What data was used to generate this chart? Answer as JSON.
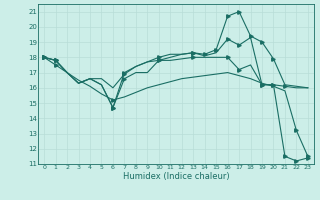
{
  "xlabel": "Humidex (Indice chaleur)",
  "bg_color": "#cceee8",
  "grid_color": "#b8ddd8",
  "line_color": "#1a6e64",
  "xlim": [
    -0.5,
    23.5
  ],
  "ylim": [
    11,
    21.5
  ],
  "yticks": [
    11,
    12,
    13,
    14,
    15,
    16,
    17,
    18,
    19,
    20,
    21
  ],
  "xticks": [
    0,
    1,
    2,
    3,
    4,
    5,
    6,
    7,
    8,
    9,
    10,
    11,
    12,
    13,
    14,
    15,
    16,
    17,
    18,
    19,
    20,
    21,
    22,
    23
  ],
  "line1_x": [
    0,
    1,
    2,
    3,
    4,
    5,
    6,
    7,
    8,
    9,
    10,
    11,
    12,
    13,
    14,
    15,
    16,
    17,
    18,
    19,
    20,
    21,
    22,
    23
  ],
  "line1_y": [
    18.0,
    17.8,
    17.0,
    16.3,
    16.6,
    16.6,
    16.0,
    16.9,
    17.4,
    17.7,
    17.8,
    17.8,
    17.9,
    18.0,
    18.0,
    18.0,
    18.0,
    17.2,
    17.5,
    16.2,
    16.2,
    16.1,
    16.0,
    16.0
  ],
  "line2_x": [
    0,
    1,
    2,
    3,
    4,
    5,
    6,
    7,
    8,
    9,
    10,
    11,
    12,
    13,
    14,
    15,
    16,
    17,
    18,
    19,
    20,
    21,
    22,
    23
  ],
  "line2_y": [
    18.0,
    17.8,
    17.0,
    16.3,
    16.6,
    16.2,
    14.7,
    16.6,
    17.0,
    17.0,
    17.8,
    18.0,
    18.2,
    18.3,
    18.2,
    18.5,
    20.7,
    21.0,
    19.4,
    19.0,
    17.9,
    16.2,
    16.1,
    16.0
  ],
  "line3_x": [
    0,
    1,
    2,
    3,
    4,
    5,
    6,
    7,
    8,
    9,
    10,
    11,
    12,
    13,
    14,
    15,
    16,
    17,
    18,
    19,
    20,
    21,
    22,
    23
  ],
  "line3_y": [
    18.0,
    17.5,
    17.0,
    16.5,
    16.1,
    15.6,
    15.2,
    15.4,
    15.7,
    16.0,
    16.2,
    16.4,
    16.6,
    16.7,
    16.8,
    16.9,
    17.0,
    16.8,
    16.6,
    16.3,
    16.1,
    15.8,
    13.2,
    11.5
  ],
  "line4_x": [
    0,
    1,
    2,
    3,
    4,
    5,
    6,
    7,
    8,
    9,
    10,
    11,
    12,
    13,
    14,
    15,
    16,
    17,
    18,
    19,
    20,
    21,
    22,
    23
  ],
  "line4_y": [
    18.0,
    17.8,
    17.0,
    16.3,
    16.6,
    16.2,
    14.7,
    17.0,
    17.4,
    17.7,
    18.0,
    18.2,
    18.2,
    18.3,
    18.1,
    18.3,
    19.2,
    18.8,
    19.3,
    16.2,
    16.2,
    11.5,
    11.2,
    11.4
  ],
  "marker_x1": [
    0,
    1,
    7,
    10,
    13,
    16,
    17,
    19,
    20,
    21
  ],
  "marker_x2": [
    0,
    1,
    6,
    7,
    10,
    13,
    14,
    15,
    16,
    17,
    18,
    19,
    20
  ],
  "marker_x3": [
    0,
    1,
    6,
    22,
    23
  ],
  "marker_x4": [
    0,
    1,
    6,
    7,
    10,
    13,
    16,
    17,
    19,
    20,
    21,
    22,
    23
  ]
}
